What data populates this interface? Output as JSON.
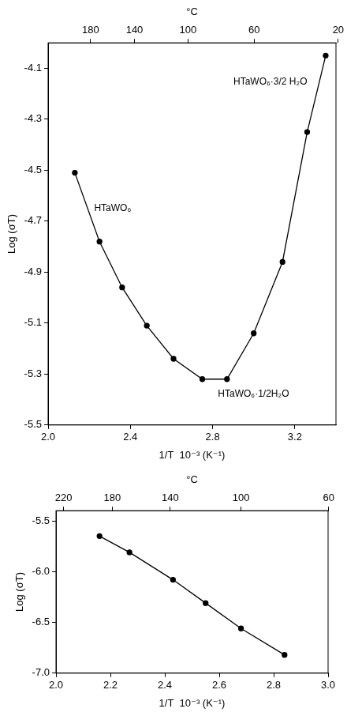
{
  "chart_data": [
    {
      "type": "line",
      "x_label": "1/T  10⁻³ (K⁻¹)",
      "y_label": "Log (σT)",
      "x2_label": "°C",
      "x": [
        2.13,
        2.25,
        2.36,
        2.48,
        2.61,
        2.75,
        2.87,
        3.0,
        3.14,
        3.26,
        3.35
      ],
      "values": [
        -4.51,
        -4.78,
        -4.96,
        -5.11,
        -5.24,
        -5.32,
        -5.32,
        -5.14,
        -4.86,
        -4.35,
        -4.05
      ],
      "color": "#000000",
      "marker": "circle",
      "line_style": "solid",
      "grid": false,
      "xlim": [
        2.0,
        3.4
      ],
      "xticks": [
        {
          "value": 2.0,
          "label": "2.0"
        },
        2.4,
        2.8,
        3.2
      ],
      "ylim": [
        -5.5,
        -4.0
      ],
      "yticks": [
        -5.5,
        -5.3,
        -5.1,
        -4.9,
        -4.7,
        -4.5,
        -4.3,
        -4.1
      ],
      "x2lim": [
        2.0,
        3.4
      ],
      "x2ticks": [
        {
          "value": 2.207,
          "label": "180"
        },
        {
          "value": 2.42,
          "label": "140"
        },
        {
          "value": 2.68,
          "label": "100"
        },
        {
          "value": 3.002,
          "label": "60"
        },
        {
          "value": 3.411,
          "label": "20"
        }
      ],
      "annotations": [
        "HTaWO₆·3/2 H₂O",
        "HTaWO₆",
        "HTaWO₆·1/2H₂O"
      ]
    },
    {
      "type": "line",
      "x_label": "1/T  10⁻³ (K⁻¹)",
      "y_label": "Log (σT)",
      "x2_label": "°C",
      "x": [
        2.16,
        2.27,
        2.43,
        2.55,
        2.68,
        2.84
      ],
      "values": [
        -5.65,
        -5.81,
        -6.08,
        -6.31,
        -6.56,
        -6.82
      ],
      "color": "#000000",
      "marker": "circle",
      "line_style": "solid",
      "grid": false,
      "xlim": [
        2.0,
        3.0
      ],
      "xticks": [
        {
          "value": 2.0,
          "label": "2.0"
        },
        2.2,
        2.4,
        2.6,
        2.8,
        {
          "value": 3.0,
          "label": "3.0"
        }
      ],
      "ylim": [
        -7.0,
        -5.4
      ],
      "yticks": [
        {
          "value": -7.0,
          "label": "-7.0"
        },
        -6.5,
        {
          "value": -6.0,
          "label": "-6.0"
        },
        -5.5
      ],
      "x2lim": [
        2.0,
        3.0
      ],
      "x2ticks": [
        {
          "value": 2.028,
          "label": "220"
        },
        {
          "value": 2.207,
          "label": "180"
        },
        {
          "value": 2.42,
          "label": "140"
        },
        {
          "value": 2.68,
          "label": "100"
        },
        {
          "value": 3.002,
          "label": "60"
        }
      ]
    }
  ]
}
